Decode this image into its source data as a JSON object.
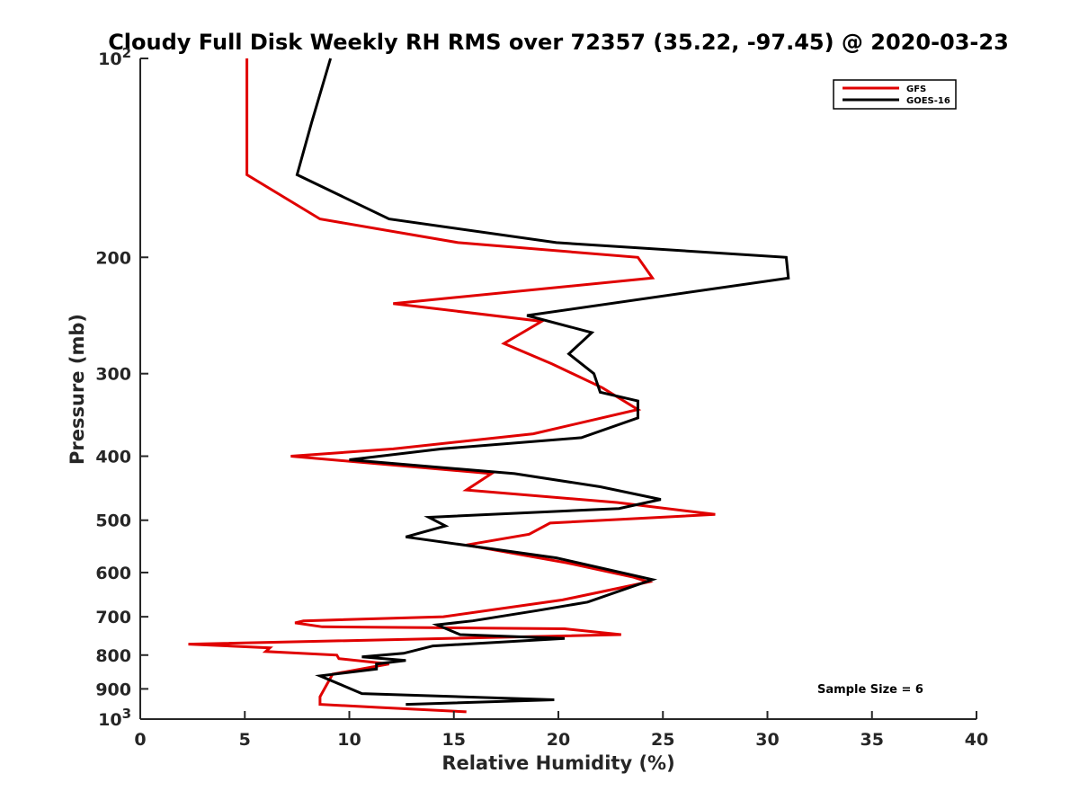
{
  "chart_data": {
    "type": "line",
    "title": "Cloudy Full Disk Weekly RH RMS over 72357 (35.22, -97.45) @ 2020-03-23",
    "xlabel": "Relative Humidity (%)",
    "ylabel": "Pressure (mb)",
    "xlim": [
      0,
      40
    ],
    "ylim": [
      100,
      1000
    ],
    "yscale": "log",
    "y_reversed": true,
    "x_ticks": [
      0,
      5,
      10,
      15,
      20,
      25,
      30,
      35,
      40
    ],
    "x_tick_labels": [
      "0",
      "5",
      "10",
      "15",
      "20",
      "25",
      "30",
      "35",
      "40"
    ],
    "y_ticks": [
      100,
      200,
      300,
      400,
      500,
      600,
      700,
      800,
      900,
      1000
    ],
    "y_tick_labels": [
      "10^2",
      "200",
      "300",
      "400",
      "500",
      "600",
      "700",
      "800",
      "900",
      "10^3"
    ],
    "grid": false,
    "legend_position": "top-right",
    "annotation": "Sample Size = 6",
    "series": [
      {
        "name": "GFS",
        "color": "#e00000",
        "points": [
          [
            5.1,
            100
          ],
          [
            5.1,
            125
          ],
          [
            5.1,
            150
          ],
          [
            8.6,
            175
          ],
          [
            15.2,
            190
          ],
          [
            23.8,
            200
          ],
          [
            24.5,
            215
          ],
          [
            12.1,
            235
          ],
          [
            19.2,
            250
          ],
          [
            17.4,
            270
          ],
          [
            19.7,
            290
          ],
          [
            22.1,
            315
          ],
          [
            23.8,
            340
          ],
          [
            18.8,
            370
          ],
          [
            12.1,
            390
          ],
          [
            7.2,
            400
          ],
          [
            16.8,
            425
          ],
          [
            15.6,
            450
          ],
          [
            22.8,
            470
          ],
          [
            27.5,
            490
          ],
          [
            19.6,
            505
          ],
          [
            18.6,
            525
          ],
          [
            15.6,
            545
          ],
          [
            20.4,
            580
          ],
          [
            23.6,
            610
          ],
          [
            24.3,
            620
          ],
          [
            20.2,
            660
          ],
          [
            14.5,
            700
          ],
          [
            7.8,
            710
          ],
          [
            7.4,
            715
          ],
          [
            8.7,
            725
          ],
          [
            20.3,
            730
          ],
          [
            23.0,
            745
          ],
          [
            2.3,
            770
          ],
          [
            6.2,
            780
          ],
          [
            6.0,
            790
          ],
          [
            9.4,
            800
          ],
          [
            9.5,
            810
          ],
          [
            11.9,
            825
          ],
          [
            9.2,
            855
          ],
          [
            8.6,
            925
          ],
          [
            8.6,
            950
          ],
          [
            11.4,
            960
          ],
          [
            15.6,
            975
          ]
        ]
      },
      {
        "name": "GOES-16",
        "color": "#000000",
        "points": [
          [
            9.1,
            100
          ],
          [
            8.2,
            125
          ],
          [
            7.5,
            150
          ],
          [
            11.9,
            175
          ],
          [
            19.9,
            190
          ],
          [
            30.9,
            200
          ],
          [
            31.0,
            215
          ],
          [
            18.5,
            245
          ],
          [
            21.6,
            260
          ],
          [
            20.5,
            280
          ],
          [
            21.7,
            300
          ],
          [
            22.0,
            320
          ],
          [
            23.8,
            330
          ],
          [
            23.8,
            350
          ],
          [
            21.1,
            375
          ],
          [
            14.4,
            390
          ],
          [
            10.0,
            405
          ],
          [
            17.9,
            425
          ],
          [
            22.0,
            445
          ],
          [
            24.9,
            465
          ],
          [
            22.9,
            480
          ],
          [
            13.8,
            495
          ],
          [
            14.6,
            510
          ],
          [
            12.7,
            530
          ],
          [
            19.9,
            570
          ],
          [
            24.5,
            615
          ],
          [
            21.4,
            665
          ],
          [
            19.0,
            685
          ],
          [
            15.9,
            710
          ],
          [
            14.2,
            720
          ],
          [
            15.3,
            745
          ],
          [
            20.3,
            755
          ],
          [
            14.0,
            775
          ],
          [
            12.6,
            795
          ],
          [
            10.6,
            805
          ],
          [
            12.7,
            815
          ],
          [
            11.3,
            825
          ],
          [
            11.3,
            840
          ],
          [
            8.6,
            860
          ],
          [
            10.6,
            915
          ],
          [
            19.8,
            935
          ],
          [
            12.7,
            950
          ]
        ]
      }
    ]
  }
}
